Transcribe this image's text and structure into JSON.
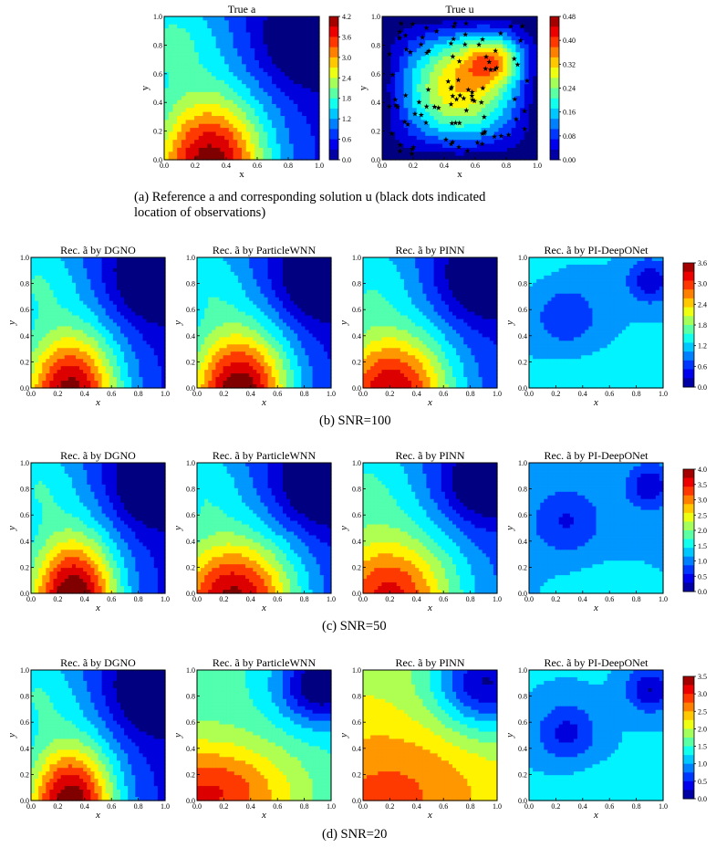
{
  "sections": {
    "a": {
      "caption": "(a) Reference a and corresponding solution u (black dots indicated location of observations)",
      "caption_line1": "(a) Reference a and corresponding solution u (black dots indicated",
      "caption_line2": "location of observations)"
    },
    "b": {
      "caption": "(b) SNR=100"
    },
    "c": {
      "caption": "(c) SNR=50"
    },
    "d": {
      "caption": "(d) SNR=20"
    }
  },
  "panels": [
    {
      "title": "True a",
      "xlabel": "x",
      "ylabel": "y",
      "field": "true_a",
      "colorbar_ticks": [
        "0.0",
        "0.6",
        "1.2",
        "1.8",
        "2.4",
        "3.0",
        "3.6",
        "4.2"
      ]
    },
    {
      "title": "True u",
      "xlabel": "x",
      "ylabel": "y",
      "field": "true_u",
      "colorbar_ticks": [
        "0.00",
        "0.08",
        "0.16",
        "0.24",
        "0.32",
        "0.40",
        "0.48"
      ]
    },
    {
      "title": "Rec. ã by DGNO",
      "xlabel": "x",
      "ylabel": "y",
      "field": "dgno_100"
    },
    {
      "title": "Rec. ã by ParticleWNN",
      "xlabel": "x",
      "ylabel": "y",
      "field": "pwnn_100"
    },
    {
      "title": "Rec. ã by PINN",
      "xlabel": "x",
      "ylabel": "y",
      "field": "pinn_100"
    },
    {
      "title": "Rec. ã by PI-DeepONet",
      "xlabel": "x",
      "ylabel": "y",
      "field": "deeponet_100",
      "colorbar_ticks": [
        "0.0",
        "0.6",
        "1.2",
        "1.8",
        "2.4",
        "3.0",
        "3.6"
      ]
    },
    {
      "title": "Rec. ã by DGNO",
      "xlabel": "x",
      "ylabel": "y",
      "field": "dgno_50"
    },
    {
      "title": "Rec. ã by ParticleWNN",
      "xlabel": "x",
      "ylabel": "y",
      "field": "pwnn_50"
    },
    {
      "title": "Rec. ã by PINN",
      "xlabel": "x",
      "ylabel": "y",
      "field": "pinn_50"
    },
    {
      "title": "Rec. ã by PI-DeepONet",
      "xlabel": "x",
      "ylabel": "y",
      "field": "deeponet_50",
      "colorbar_ticks": [
        "0.0",
        "0.5",
        "1.0",
        "1.5",
        "2.0",
        "2.5",
        "3.0",
        "3.5",
        "4.0"
      ]
    },
    {
      "title": "Rec. ã by DGNO",
      "xlabel": "x",
      "ylabel": "y",
      "field": "dgno_20"
    },
    {
      "title": "Rec. ã by ParticleWNN",
      "xlabel": "x",
      "ylabel": "y",
      "field": "pwnn_20"
    },
    {
      "title": "Rec. ã by PINN",
      "xlabel": "x",
      "ylabel": "y",
      "field": "pinn_20"
    },
    {
      "title": "Rec. ã by PI-DeepONet",
      "xlabel": "x",
      "ylabel": "y",
      "field": "deeponet_20",
      "colorbar_ticks": [
        "0.0",
        "0.5",
        "1.0",
        "1.5",
        "2.0",
        "2.5",
        "3.0",
        "3.5"
      ]
    }
  ],
  "axis_ticks": [
    "0.0",
    "0.2",
    "0.4",
    "0.6",
    "0.8",
    "1.0"
  ],
  "colormap": "jet",
  "observation_marker": "black star"
}
